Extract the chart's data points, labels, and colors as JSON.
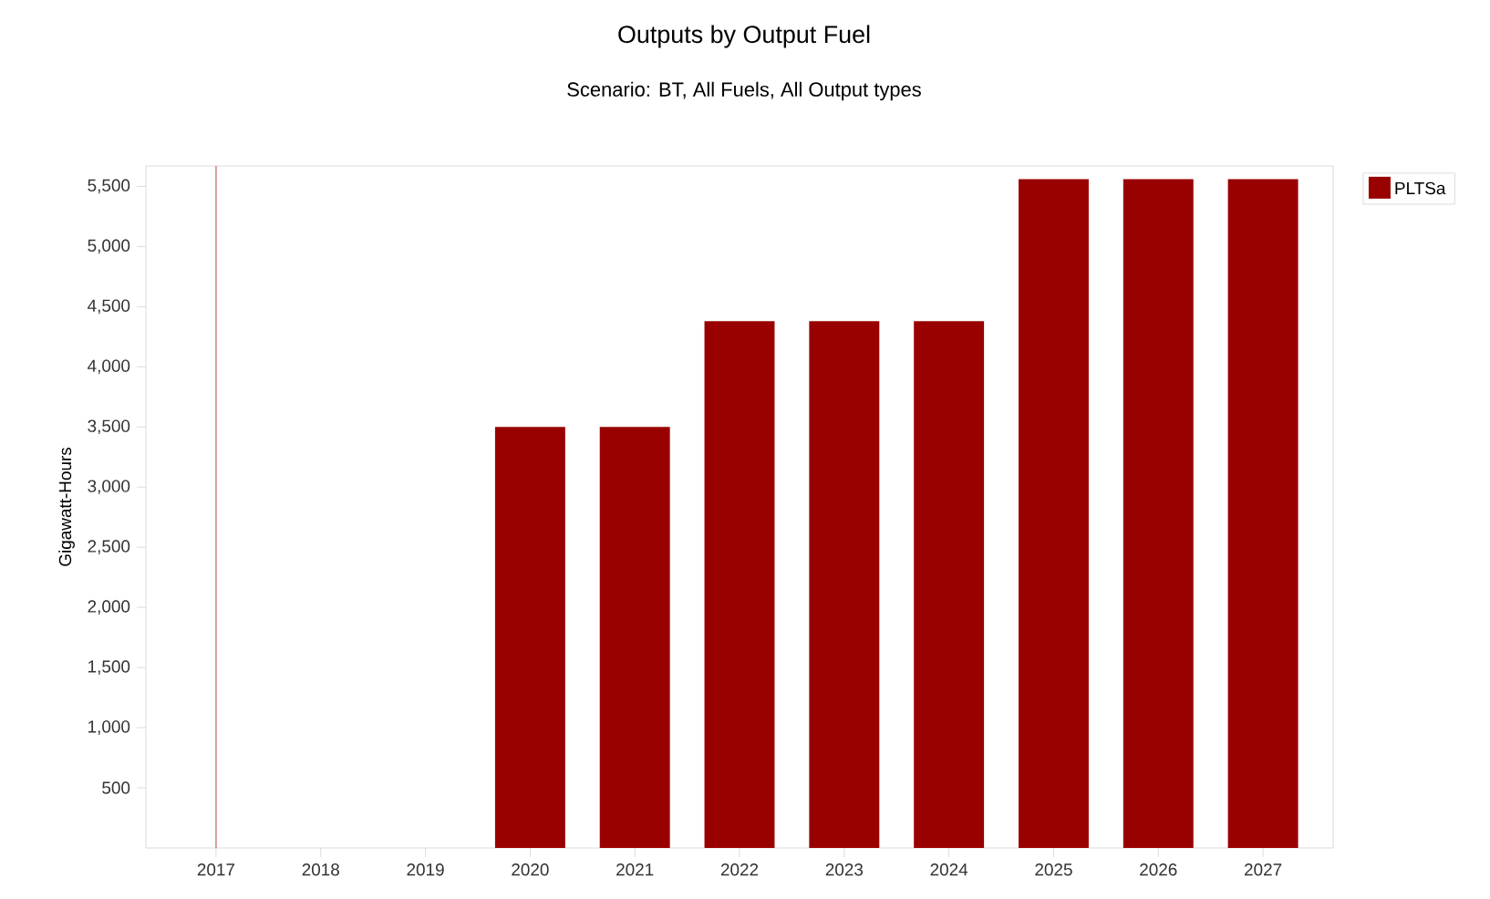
{
  "chart_data": {
    "type": "bar",
    "title": "Outputs by Output Fuel",
    "subtitle": "Scenario: BT, All Fuels, All Output types",
    "ylabel": "Gigawatt-Hours",
    "categories": [
      "2017",
      "2018",
      "2019",
      "2020",
      "2021",
      "2022",
      "2023",
      "2024",
      "2025",
      "2026",
      "2027"
    ],
    "series": [
      {
        "name": "PLTSa",
        "color": "#990000",
        "values": [
          null,
          null,
          null,
          3500,
          3500,
          4380,
          4380,
          4380,
          5560,
          5560,
          5560
        ]
      }
    ],
    "ylim": [
      0,
      5670
    ],
    "yticks": [
      {
        "value": 500,
        "label": "500"
      },
      {
        "value": 1000,
        "label": "1,000"
      },
      {
        "value": 1500,
        "label": "1,500"
      },
      {
        "value": 2000,
        "label": "2,000"
      },
      {
        "value": 2500,
        "label": "2,500"
      },
      {
        "value": 3000,
        "label": "3,000"
      },
      {
        "value": 3500,
        "label": "3,500"
      },
      {
        "value": 4000,
        "label": "4,000"
      },
      {
        "value": 4500,
        "label": "4,500"
      },
      {
        "value": 5000,
        "label": "5,000"
      },
      {
        "value": 5500,
        "label": "5,500"
      }
    ],
    "ref_lines": [
      {
        "axis": "x",
        "value": "2017",
        "color": "#c98a8a"
      }
    ],
    "grid": false,
    "legend": "top right"
  }
}
